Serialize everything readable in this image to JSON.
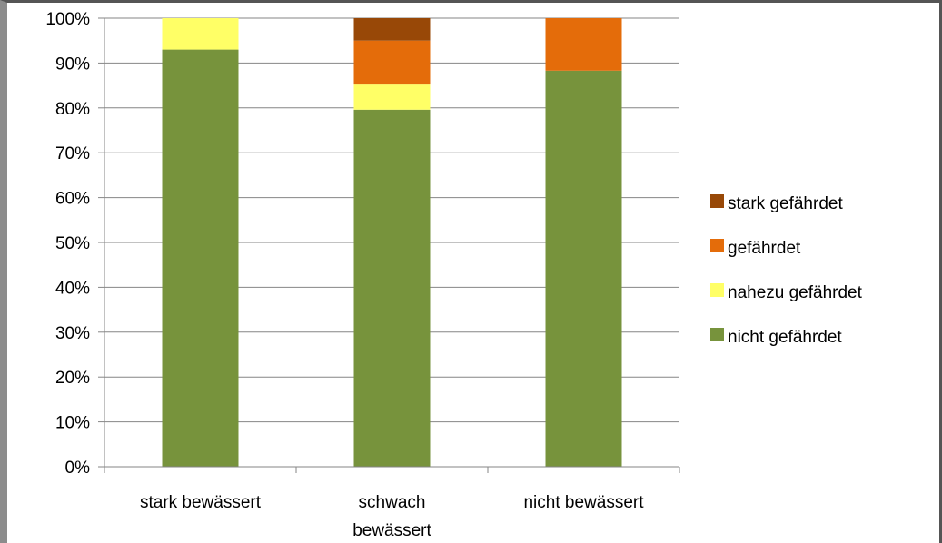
{
  "chart_data": {
    "type": "bar",
    "stacked": true,
    "percent": true,
    "categories": [
      "stark bewässert",
      "schwach bewässert",
      "nicht bewässert"
    ],
    "category_lines": [
      [
        "stark bewässert"
      ],
      [
        "schwach",
        "bewässert"
      ],
      [
        "nicht bewässert"
      ]
    ],
    "series": [
      {
        "name": "nicht gefährdet",
        "color": "#77933c",
        "values": [
          93,
          79.6,
          88.3
        ]
      },
      {
        "name": "nahezu gefährdet",
        "color": "#ffff66",
        "values": [
          7,
          5.6,
          0
        ]
      },
      {
        "name": "gefährdet",
        "color": "#e46c0a",
        "values": [
          0,
          9.8,
          11.7
        ]
      },
      {
        "name": "stark gefährdet",
        "color": "#984807",
        "values": [
          0,
          5,
          0
        ]
      }
    ],
    "ylim": [
      0,
      100
    ],
    "yticks": [
      "0%",
      "10%",
      "20%",
      "30%",
      "40%",
      "50%",
      "60%",
      "70%",
      "80%",
      "90%",
      "100%"
    ],
    "grid": true,
    "legend_position": "right",
    "legend_order": [
      "stark gefährdet",
      "gefährdet",
      "nahezu gefährdet",
      "nicht gefährdet"
    ],
    "title": "",
    "xlabel": "",
    "ylabel": ""
  }
}
